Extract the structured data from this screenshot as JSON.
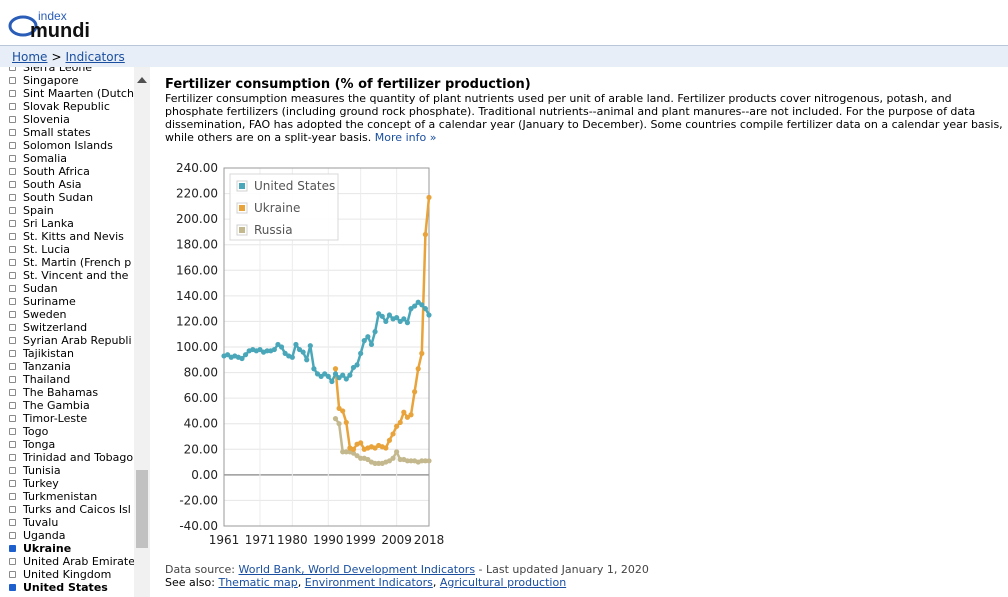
{
  "logo": {
    "line1": "index",
    "line2": "mundi"
  },
  "breadcrumb": {
    "home": "Home",
    "separator": ">",
    "indicators": "Indicators"
  },
  "countries": [
    {
      "name": "Sierra Leone",
      "checked": false
    },
    {
      "name": "Singapore",
      "checked": false
    },
    {
      "name": "Sint Maarten (Dutch",
      "checked": false
    },
    {
      "name": "Slovak Republic",
      "checked": false
    },
    {
      "name": "Slovenia",
      "checked": false
    },
    {
      "name": "Small states",
      "checked": false
    },
    {
      "name": "Solomon Islands",
      "checked": false
    },
    {
      "name": "Somalia",
      "checked": false
    },
    {
      "name": "South Africa",
      "checked": false
    },
    {
      "name": "South Asia",
      "checked": false
    },
    {
      "name": "South Sudan",
      "checked": false
    },
    {
      "name": "Spain",
      "checked": false
    },
    {
      "name": "Sri Lanka",
      "checked": false
    },
    {
      "name": "St. Kitts and Nevis",
      "checked": false
    },
    {
      "name": "St. Lucia",
      "checked": false
    },
    {
      "name": "St. Martin (French p",
      "checked": false
    },
    {
      "name": "St. Vincent and the",
      "checked": false
    },
    {
      "name": "Sudan",
      "checked": false
    },
    {
      "name": "Suriname",
      "checked": false
    },
    {
      "name": "Sweden",
      "checked": false
    },
    {
      "name": "Switzerland",
      "checked": false
    },
    {
      "name": "Syrian Arab Republi",
      "checked": false
    },
    {
      "name": "Tajikistan",
      "checked": false
    },
    {
      "name": "Tanzania",
      "checked": false
    },
    {
      "name": "Thailand",
      "checked": false
    },
    {
      "name": "The Bahamas",
      "checked": false
    },
    {
      "name": "The Gambia",
      "checked": false
    },
    {
      "name": "Timor-Leste",
      "checked": false
    },
    {
      "name": "Togo",
      "checked": false
    },
    {
      "name": "Tonga",
      "checked": false
    },
    {
      "name": "Trinidad and Tobago",
      "checked": false
    },
    {
      "name": "Tunisia",
      "checked": false
    },
    {
      "name": "Turkey",
      "checked": false
    },
    {
      "name": "Turkmenistan",
      "checked": false
    },
    {
      "name": "Turks and Caicos Isl",
      "checked": false
    },
    {
      "name": "Tuvalu",
      "checked": false
    },
    {
      "name": "Uganda",
      "checked": false
    },
    {
      "name": "Ukraine",
      "checked": true
    },
    {
      "name": "United Arab Emirate",
      "checked": false
    },
    {
      "name": "United Kingdom",
      "checked": false
    },
    {
      "name": "United States",
      "checked": true
    }
  ],
  "page": {
    "title": "Fertilizer consumption (% of fertilizer production)",
    "description": "Fertilizer consumption measures the quantity of plant nutrients used per unit of arable land. Fertilizer products cover nitrogenous, potash, and phosphate fertilizers (including ground rock phosphate). Traditional nutrients--animal and plant manures--are not included. For the purpose of data dissemination, FAO has adopted the concept of a calendar year (January to December). Some countries compile fertilizer data on a calendar year basis, while others are on a split-year basis.",
    "more_info": "More info »"
  },
  "footer": {
    "source_prefix": "Data source: ",
    "source_link": "World Bank, World Development Indicators",
    "source_suffix": " - Last updated January 1, 2020",
    "see_also_prefix": "See also: ",
    "see_also_links": [
      "Thematic map",
      "Environment Indicators",
      "Agricultural production"
    ],
    "see_also_sep": ", "
  },
  "chart_data": {
    "type": "line",
    "xlim": [
      1961,
      2018
    ],
    "ylim": [
      -40,
      240
    ],
    "x_ticks": [
      1961,
      1971,
      1980,
      1990,
      1999,
      2009,
      2018
    ],
    "y_ticks": [
      "240.00",
      "220.00",
      "200.00",
      "180.00",
      "160.00",
      "140.00",
      "120.00",
      "100.00",
      "80.00",
      "60.00",
      "40.00",
      "20.00",
      "0.00",
      "-20.00",
      "-40.00"
    ],
    "legend_position": "top-left",
    "series": [
      {
        "name": "United States",
        "color": "#4aa7b9",
        "x": [
          1961,
          1962,
          1963,
          1964,
          1965,
          1966,
          1967,
          1968,
          1969,
          1970,
          1971,
          1972,
          1973,
          1974,
          1975,
          1976,
          1977,
          1978,
          1979,
          1980,
          1981,
          1982,
          1983,
          1984,
          1985,
          1986,
          1987,
          1988,
          1989,
          1990,
          1991,
          1992,
          1993,
          1994,
          1995,
          1996,
          1997,
          1998,
          1999,
          2000,
          2001,
          2002,
          2003,
          2004,
          2005,
          2006,
          2007,
          2008,
          2009,
          2010,
          2011,
          2012,
          2013,
          2014,
          2015,
          2016,
          2017,
          2018
        ],
        "y": [
          93,
          94,
          92,
          93,
          92,
          91,
          94,
          97,
          98,
          97,
          98,
          96,
          97,
          97,
          98,
          102,
          100,
          95,
          93,
          92,
          102,
          98,
          96,
          90,
          101,
          83,
          79,
          77,
          79,
          77,
          73,
          79,
          76,
          78,
          75,
          78,
          84,
          86,
          95,
          105,
          108,
          102,
          112,
          126,
          124,
          120,
          125,
          122,
          123,
          120,
          122,
          119,
          130,
          132,
          135,
          133,
          130,
          125
        ]
      },
      {
        "name": "Ukraine",
        "color": "#e8a33a",
        "x": [
          1992,
          1993,
          1994,
          1995,
          1996,
          1997,
          1998,
          1999,
          2000,
          2001,
          2002,
          2003,
          2004,
          2005,
          2006,
          2007,
          2008,
          2009,
          2010,
          2011,
          2012,
          2013,
          2014,
          2015,
          2016,
          2017,
          2018
        ],
        "y": [
          83,
          52,
          50,
          41,
          21,
          20,
          24,
          25,
          20,
          21,
          22,
          21,
          23,
          22,
          21,
          27,
          32,
          38,
          41,
          49,
          45,
          47,
          65,
          83,
          95,
          188,
          217
        ]
      },
      {
        "name": "Russia",
        "color": "#c4b98e",
        "x": [
          1992,
          1993,
          1994,
          1995,
          1996,
          1997,
          1998,
          1999,
          2000,
          2001,
          2002,
          2003,
          2004,
          2005,
          2006,
          2007,
          2008,
          2009,
          2010,
          2011,
          2012,
          2013,
          2014,
          2015,
          2016,
          2017,
          2018
        ],
        "y": [
          44,
          40,
          18,
          18,
          18,
          17,
          15,
          13,
          13,
          12,
          10,
          9,
          9,
          9,
          10,
          11,
          13,
          18,
          12,
          12,
          11,
          11,
          11,
          10,
          11,
          11,
          11
        ]
      }
    ]
  }
}
